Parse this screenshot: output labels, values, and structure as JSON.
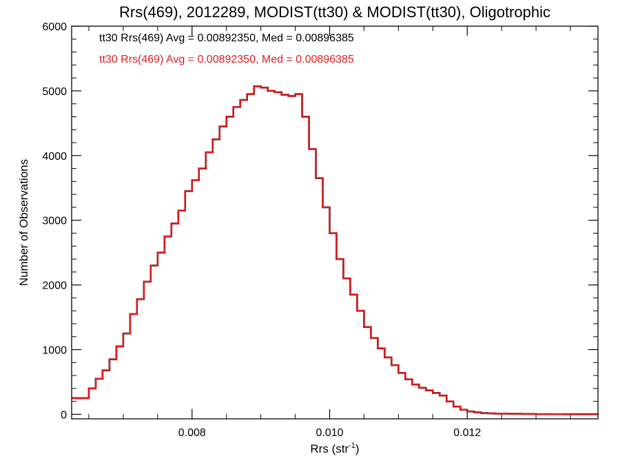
{
  "chart_data": {
    "type": "histogram-step",
    "title": "Rrs(469), 2012289, MODIST(tt30) & MODIST(tt30), Oligotrophic",
    "xlabel": "Rrs (str",
    "xlabel_superscript": "-1",
    "xlabel_suffix": ")",
    "ylabel": "Number of Observations",
    "xlim": [
      0.00625,
      0.0139
    ],
    "ylim": [
      -70,
      6000
    ],
    "xticks": [
      0.008,
      0.01,
      0.012
    ],
    "xtick_labels": [
      "0.008",
      "0.010",
      "0.012"
    ],
    "yticks": [
      0,
      1000,
      2000,
      3000,
      4000,
      5000,
      6000
    ],
    "ytick_labels": [
      "0",
      "1000",
      "2000",
      "3000",
      "4000",
      "5000",
      "6000"
    ],
    "annotations": [
      {
        "text": "tt30 Rrs(469) Avg = 0.00892350, Med = 0.00896385",
        "color": "#000000"
      },
      {
        "text": "tt30 Rrs(469) Avg = 0.00892350, Med = 0.00896385",
        "color": "#e8191b"
      }
    ],
    "series": [
      {
        "color": "#000000",
        "x": [
          0.00625,
          0.0065,
          0.0066,
          0.0067,
          0.0068,
          0.0069,
          0.007,
          0.0071,
          0.0072,
          0.0073,
          0.0074,
          0.0075,
          0.0076,
          0.0077,
          0.0078,
          0.0079,
          0.008,
          0.0081,
          0.0082,
          0.0083,
          0.0084,
          0.0085,
          0.0086,
          0.0087,
          0.0088,
          0.0089,
          0.009,
          0.0091,
          0.0092,
          0.0093,
          0.0094,
          0.0095,
          0.0096,
          0.0097,
          0.0098,
          0.0099,
          0.01,
          0.0101,
          0.0102,
          0.0103,
          0.0104,
          0.0105,
          0.0106,
          0.0107,
          0.0108,
          0.0109,
          0.011,
          0.0111,
          0.0112,
          0.0113,
          0.0114,
          0.0115,
          0.0116,
          0.0117,
          0.0118,
          0.0119,
          0.012,
          0.0121,
          0.0122,
          0.0123,
          0.0124,
          0.0126,
          0.0128,
          0.013,
          0.0132,
          0.0134,
          0.0136,
          0.0139
        ],
        "y": [
          250,
          400,
          550,
          680,
          850,
          1050,
          1250,
          1550,
          1780,
          2050,
          2300,
          2500,
          2750,
          2950,
          3150,
          3450,
          3620,
          3800,
          4050,
          4250,
          4450,
          4600,
          4750,
          4860,
          4950,
          5070,
          5050,
          5000,
          4980,
          4940,
          4920,
          4950,
          4600,
          4100,
          3650,
          3200,
          2800,
          2400,
          2100,
          1850,
          1600,
          1350,
          1180,
          1020,
          880,
          760,
          640,
          540,
          460,
          410,
          370,
          330,
          290,
          200,
          120,
          70,
          45,
          30,
          20,
          15,
          10,
          8,
          5,
          3,
          2,
          1,
          1,
          0
        ]
      },
      {
        "color": "#e8191b",
        "x": [
          0.00625,
          0.0065,
          0.0066,
          0.0067,
          0.0068,
          0.0069,
          0.007,
          0.0071,
          0.0072,
          0.0073,
          0.0074,
          0.0075,
          0.0076,
          0.0077,
          0.0078,
          0.0079,
          0.008,
          0.0081,
          0.0082,
          0.0083,
          0.0084,
          0.0085,
          0.0086,
          0.0087,
          0.0088,
          0.0089,
          0.009,
          0.0091,
          0.0092,
          0.0093,
          0.0094,
          0.0095,
          0.0096,
          0.0097,
          0.0098,
          0.0099,
          0.01,
          0.0101,
          0.0102,
          0.0103,
          0.0104,
          0.0105,
          0.0106,
          0.0107,
          0.0108,
          0.0109,
          0.011,
          0.0111,
          0.0112,
          0.0113,
          0.0114,
          0.0115,
          0.0116,
          0.0117,
          0.0118,
          0.0119,
          0.012,
          0.0121,
          0.0122,
          0.0123,
          0.0124,
          0.0126,
          0.0128,
          0.013,
          0.0132,
          0.0134,
          0.0136,
          0.0139
        ],
        "y": [
          250,
          400,
          550,
          680,
          850,
          1050,
          1250,
          1550,
          1780,
          2050,
          2300,
          2500,
          2750,
          2950,
          3150,
          3450,
          3620,
          3800,
          4050,
          4250,
          4450,
          4600,
          4750,
          4860,
          4950,
          5070,
          5050,
          5000,
          4980,
          4940,
          4920,
          4950,
          4600,
          4100,
          3650,
          3200,
          2800,
          2400,
          2100,
          1850,
          1600,
          1350,
          1180,
          1020,
          880,
          760,
          640,
          540,
          460,
          410,
          370,
          330,
          290,
          200,
          120,
          70,
          45,
          30,
          20,
          15,
          10,
          8,
          5,
          3,
          2,
          1,
          1,
          0
        ]
      }
    ]
  }
}
